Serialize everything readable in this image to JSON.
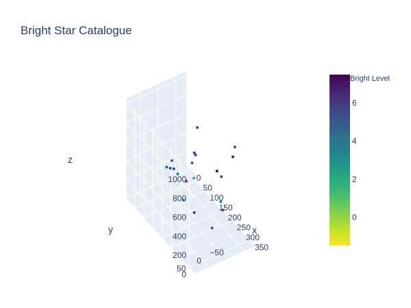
{
  "chart_data": {
    "type": "scatter",
    "title": "Bright Star Catalogue",
    "xlabel": "x",
    "ylabel": "y",
    "zlabel": "z",
    "xlim": [
      0,
      380
    ],
    "ylim": [
      -80,
      90
    ],
    "zlim": [
      0,
      1050
    ],
    "x_ticks": [
      0,
      50,
      100,
      150,
      200,
      250,
      300,
      350
    ],
    "x_tick_labels": [
      "0",
      "50",
      "100",
      "150",
      "200",
      "250",
      "300",
      "350"
    ],
    "y_ticks": [
      -50,
      0,
      50
    ],
    "y_tick_labels": [
      "−50",
      "0",
      "50"
    ],
    "z_ticks": [
      0,
      200,
      400,
      600,
      800,
      1000
    ],
    "z_tick_labels": [
      "0",
      "200",
      "400",
      "600",
      "800",
      "1000"
    ],
    "colorbar": {
      "title": "Bright Level",
      "range": [
        -1.5,
        7.5
      ],
      "ticks": [
        0,
        2,
        4,
        6
      ],
      "tick_labels": [
        "0",
        "2",
        "4",
        "6"
      ],
      "colorscale": "Viridis (reversed)",
      "colors": [
        "#fde725",
        "#b5de2b",
        "#6ece58",
        "#35b779",
        "#1f9e89",
        "#26828e",
        "#31688e",
        "#3e4989",
        "#482878",
        "#440154"
      ]
    },
    "grid": true,
    "points": [
      {
        "x": 357,
        "y": 15,
        "z": 905,
        "c": 7.3
      },
      {
        "x": 333,
        "y": -42,
        "z": 908,
        "c": 6.6
      },
      {
        "x": 303,
        "y": -63,
        "z": 913,
        "c": 5.3
      },
      {
        "x": 352,
        "y": 0,
        "z": 810,
        "c": 5.5
      },
      {
        "x": 215,
        "y": 70,
        "z": 812,
        "c": 5.0
      },
      {
        "x": 178,
        "y": 66,
        "z": 660,
        "c": 5.0
      },
      {
        "x": 224,
        "y": 58,
        "z": 670,
        "c": 3.5
      },
      {
        "x": 240,
        "y": 42,
        "z": 600,
        "c": 5.2
      },
      {
        "x": 147,
        "y": 40,
        "z": 540,
        "c": 5.6
      },
      {
        "x": 128,
        "y": 20,
        "z": 460,
        "c": 5.3
      },
      {
        "x": 150,
        "y": -20,
        "z": 500,
        "c": 5.4
      },
      {
        "x": 120,
        "y": -45,
        "z": 480,
        "c": 5.6
      },
      {
        "x": 100,
        "y": -60,
        "z": 700,
        "c": 5.6
      },
      {
        "x": 60,
        "y": -72,
        "z": 330,
        "c": 6.0
      },
      {
        "x": 200,
        "y": 30,
        "z": 300,
        "c": 3.0
      },
      {
        "x": 180,
        "y": -10,
        "z": 420,
        "c": 2.0
      },
      {
        "x": 280,
        "y": 40,
        "z": 350,
        "c": 5.8
      },
      {
        "x": 300,
        "y": -30,
        "z": 300,
        "c": 5.2
      },
      {
        "x": 250,
        "y": -50,
        "z": 250,
        "c": 3.5
      },
      {
        "x": 320,
        "y": 10,
        "z": 220,
        "c": 5.0
      }
    ]
  }
}
